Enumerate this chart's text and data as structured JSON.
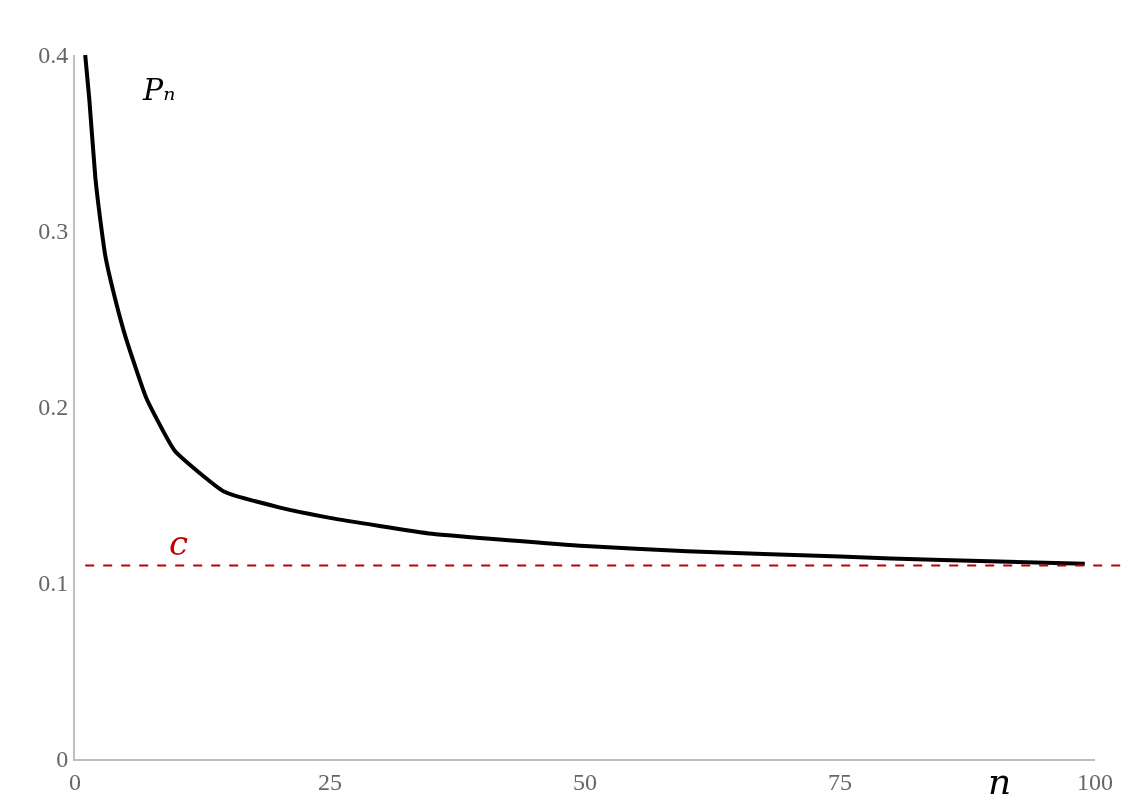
{
  "chart_data": {
    "type": "line",
    "xlabel": "n",
    "x": [
      1,
      1.4,
      2,
      2.6,
      3,
      4,
      5,
      7,
      9.8,
      14.6,
      20,
      25,
      35,
      50,
      60,
      75,
      85,
      99
    ],
    "series": [
      {
        "name": "Pₙ",
        "color": "#000000",
        "values": [
          0.4,
          0.375,
          0.33,
          0.301,
          0.285,
          0.26,
          0.239,
          0.205,
          0.175,
          0.152,
          0.143,
          0.137,
          0.128,
          0.121,
          0.118,
          0.115,
          0.113,
          0.111
        ]
      }
    ],
    "xlim": [
      0,
      100
    ],
    "xticks": [
      0,
      25,
      50,
      75,
      100
    ],
    "ylim": [
      0,
      0.4
    ],
    "yticks": [
      0,
      0.1,
      0.2,
      0.3,
      0.4
    ],
    "ref_lines": [
      {
        "axis": "y",
        "value": 0.11,
        "label": "c",
        "color": "#c00000",
        "line_style": "dashed"
      }
    ],
    "grid": false,
    "legend": false,
    "marker": "none",
    "line_style": "solid"
  }
}
